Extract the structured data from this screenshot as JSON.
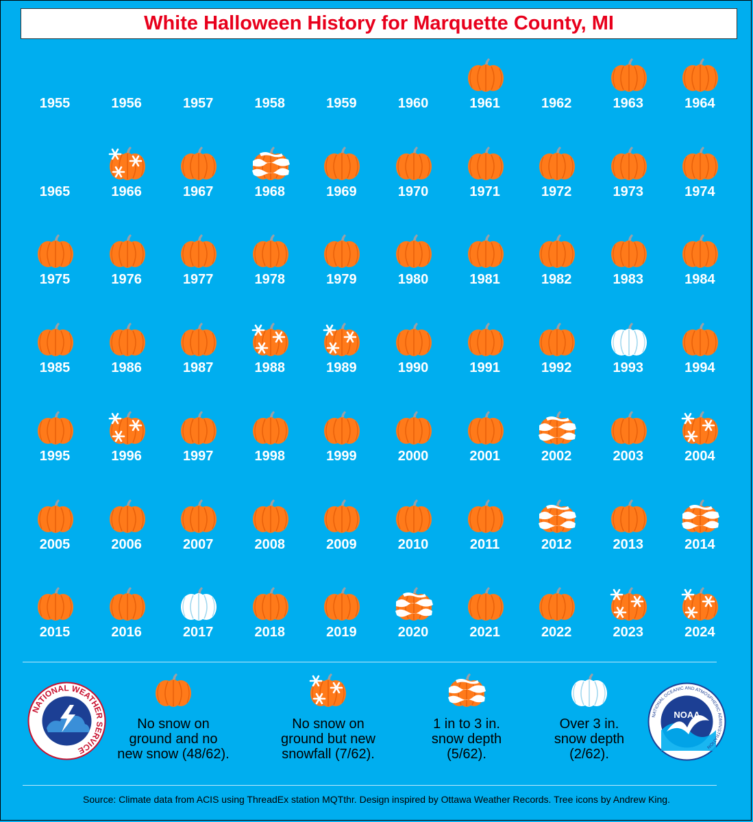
{
  "title": "White Halloween History for Marquette County, MI",
  "colors": {
    "background": "#00aeef",
    "pumpkin": "#ff7a1a",
    "pumpkin_rib": "#e8600a",
    "stem": "#9aa0a6",
    "snow": "#ffffff",
    "title_red": "#e8001c"
  },
  "categories": {
    "none": "pumpkin-icon",
    "snowfall": "pumpkin-snowflakes-icon",
    "depth_1_3": "pumpkin-snow-bands-icon",
    "depth_over_3": "white-pumpkin-icon",
    "missing": "no-icon"
  },
  "years": [
    {
      "year": "1955",
      "cat": "missing"
    },
    {
      "year": "1956",
      "cat": "missing"
    },
    {
      "year": "1957",
      "cat": "missing"
    },
    {
      "year": "1958",
      "cat": "missing"
    },
    {
      "year": "1959",
      "cat": "missing"
    },
    {
      "year": "1960",
      "cat": "missing"
    },
    {
      "year": "1961",
      "cat": "none"
    },
    {
      "year": "1962",
      "cat": "missing"
    },
    {
      "year": "1963",
      "cat": "none"
    },
    {
      "year": "1964",
      "cat": "none"
    },
    {
      "year": "1965",
      "cat": "missing"
    },
    {
      "year": "1966",
      "cat": "snowfall"
    },
    {
      "year": "1967",
      "cat": "none"
    },
    {
      "year": "1968",
      "cat": "depth_1_3"
    },
    {
      "year": "1969",
      "cat": "none"
    },
    {
      "year": "1970",
      "cat": "none"
    },
    {
      "year": "1971",
      "cat": "none"
    },
    {
      "year": "1972",
      "cat": "none"
    },
    {
      "year": "1973",
      "cat": "none"
    },
    {
      "year": "1974",
      "cat": "none"
    },
    {
      "year": "1975",
      "cat": "none"
    },
    {
      "year": "1976",
      "cat": "none"
    },
    {
      "year": "1977",
      "cat": "none"
    },
    {
      "year": "1978",
      "cat": "none"
    },
    {
      "year": "1979",
      "cat": "none"
    },
    {
      "year": "1980",
      "cat": "none"
    },
    {
      "year": "1981",
      "cat": "none"
    },
    {
      "year": "1982",
      "cat": "none"
    },
    {
      "year": "1983",
      "cat": "none"
    },
    {
      "year": "1984",
      "cat": "none"
    },
    {
      "year": "1985",
      "cat": "none"
    },
    {
      "year": "1986",
      "cat": "none"
    },
    {
      "year": "1987",
      "cat": "none"
    },
    {
      "year": "1988",
      "cat": "snowfall"
    },
    {
      "year": "1989",
      "cat": "snowfall"
    },
    {
      "year": "1990",
      "cat": "none"
    },
    {
      "year": "1991",
      "cat": "none"
    },
    {
      "year": "1992",
      "cat": "none"
    },
    {
      "year": "1993",
      "cat": "depth_over_3"
    },
    {
      "year": "1994",
      "cat": "none"
    },
    {
      "year": "1995",
      "cat": "none"
    },
    {
      "year": "1996",
      "cat": "snowfall"
    },
    {
      "year": "1997",
      "cat": "none"
    },
    {
      "year": "1998",
      "cat": "none"
    },
    {
      "year": "1999",
      "cat": "none"
    },
    {
      "year": "2000",
      "cat": "none"
    },
    {
      "year": "2001",
      "cat": "none"
    },
    {
      "year": "2002",
      "cat": "depth_1_3"
    },
    {
      "year": "2003",
      "cat": "none"
    },
    {
      "year": "2004",
      "cat": "snowfall"
    },
    {
      "year": "2005",
      "cat": "none"
    },
    {
      "year": "2006",
      "cat": "none"
    },
    {
      "year": "2007",
      "cat": "none"
    },
    {
      "year": "2008",
      "cat": "none"
    },
    {
      "year": "2009",
      "cat": "none"
    },
    {
      "year": "2010",
      "cat": "none"
    },
    {
      "year": "2011",
      "cat": "none"
    },
    {
      "year": "2012",
      "cat": "depth_1_3"
    },
    {
      "year": "2013",
      "cat": "none"
    },
    {
      "year": "2014",
      "cat": "depth_1_3"
    },
    {
      "year": "2015",
      "cat": "none"
    },
    {
      "year": "2016",
      "cat": "none"
    },
    {
      "year": "2017",
      "cat": "depth_over_3"
    },
    {
      "year": "2018",
      "cat": "none"
    },
    {
      "year": "2019",
      "cat": "none"
    },
    {
      "year": "2020",
      "cat": "depth_1_3"
    },
    {
      "year": "2021",
      "cat": "none"
    },
    {
      "year": "2022",
      "cat": "none"
    },
    {
      "year": "2023",
      "cat": "snowfall"
    },
    {
      "year": "2024",
      "cat": "snowfall"
    }
  ],
  "legend": [
    {
      "cat": "none",
      "text": "No snow on\nground and no\nnew snow (48/62)."
    },
    {
      "cat": "snowfall",
      "text": "No snow on\nground but new\nsnowfall (7/62)."
    },
    {
      "cat": "depth_1_3",
      "text": "1 in to 3 in.\nsnow depth\n(5/62)."
    },
    {
      "cat": "depth_over_3",
      "text": "Over 3 in.\nsnow depth\n(2/62)."
    }
  ],
  "logos": {
    "nws_text": "NATIONAL WEATHER SERVICE",
    "noaa_text": "NOAA",
    "noaa_ring_text": "NATIONAL OCEANIC AND ATMOSPHERIC ADMINISTRATION"
  },
  "source": "Source: Climate data from ACIS using ThreadEx station MQTthr. Design inspired by Ottawa Weather Records. Tree icons by Andrew King."
}
